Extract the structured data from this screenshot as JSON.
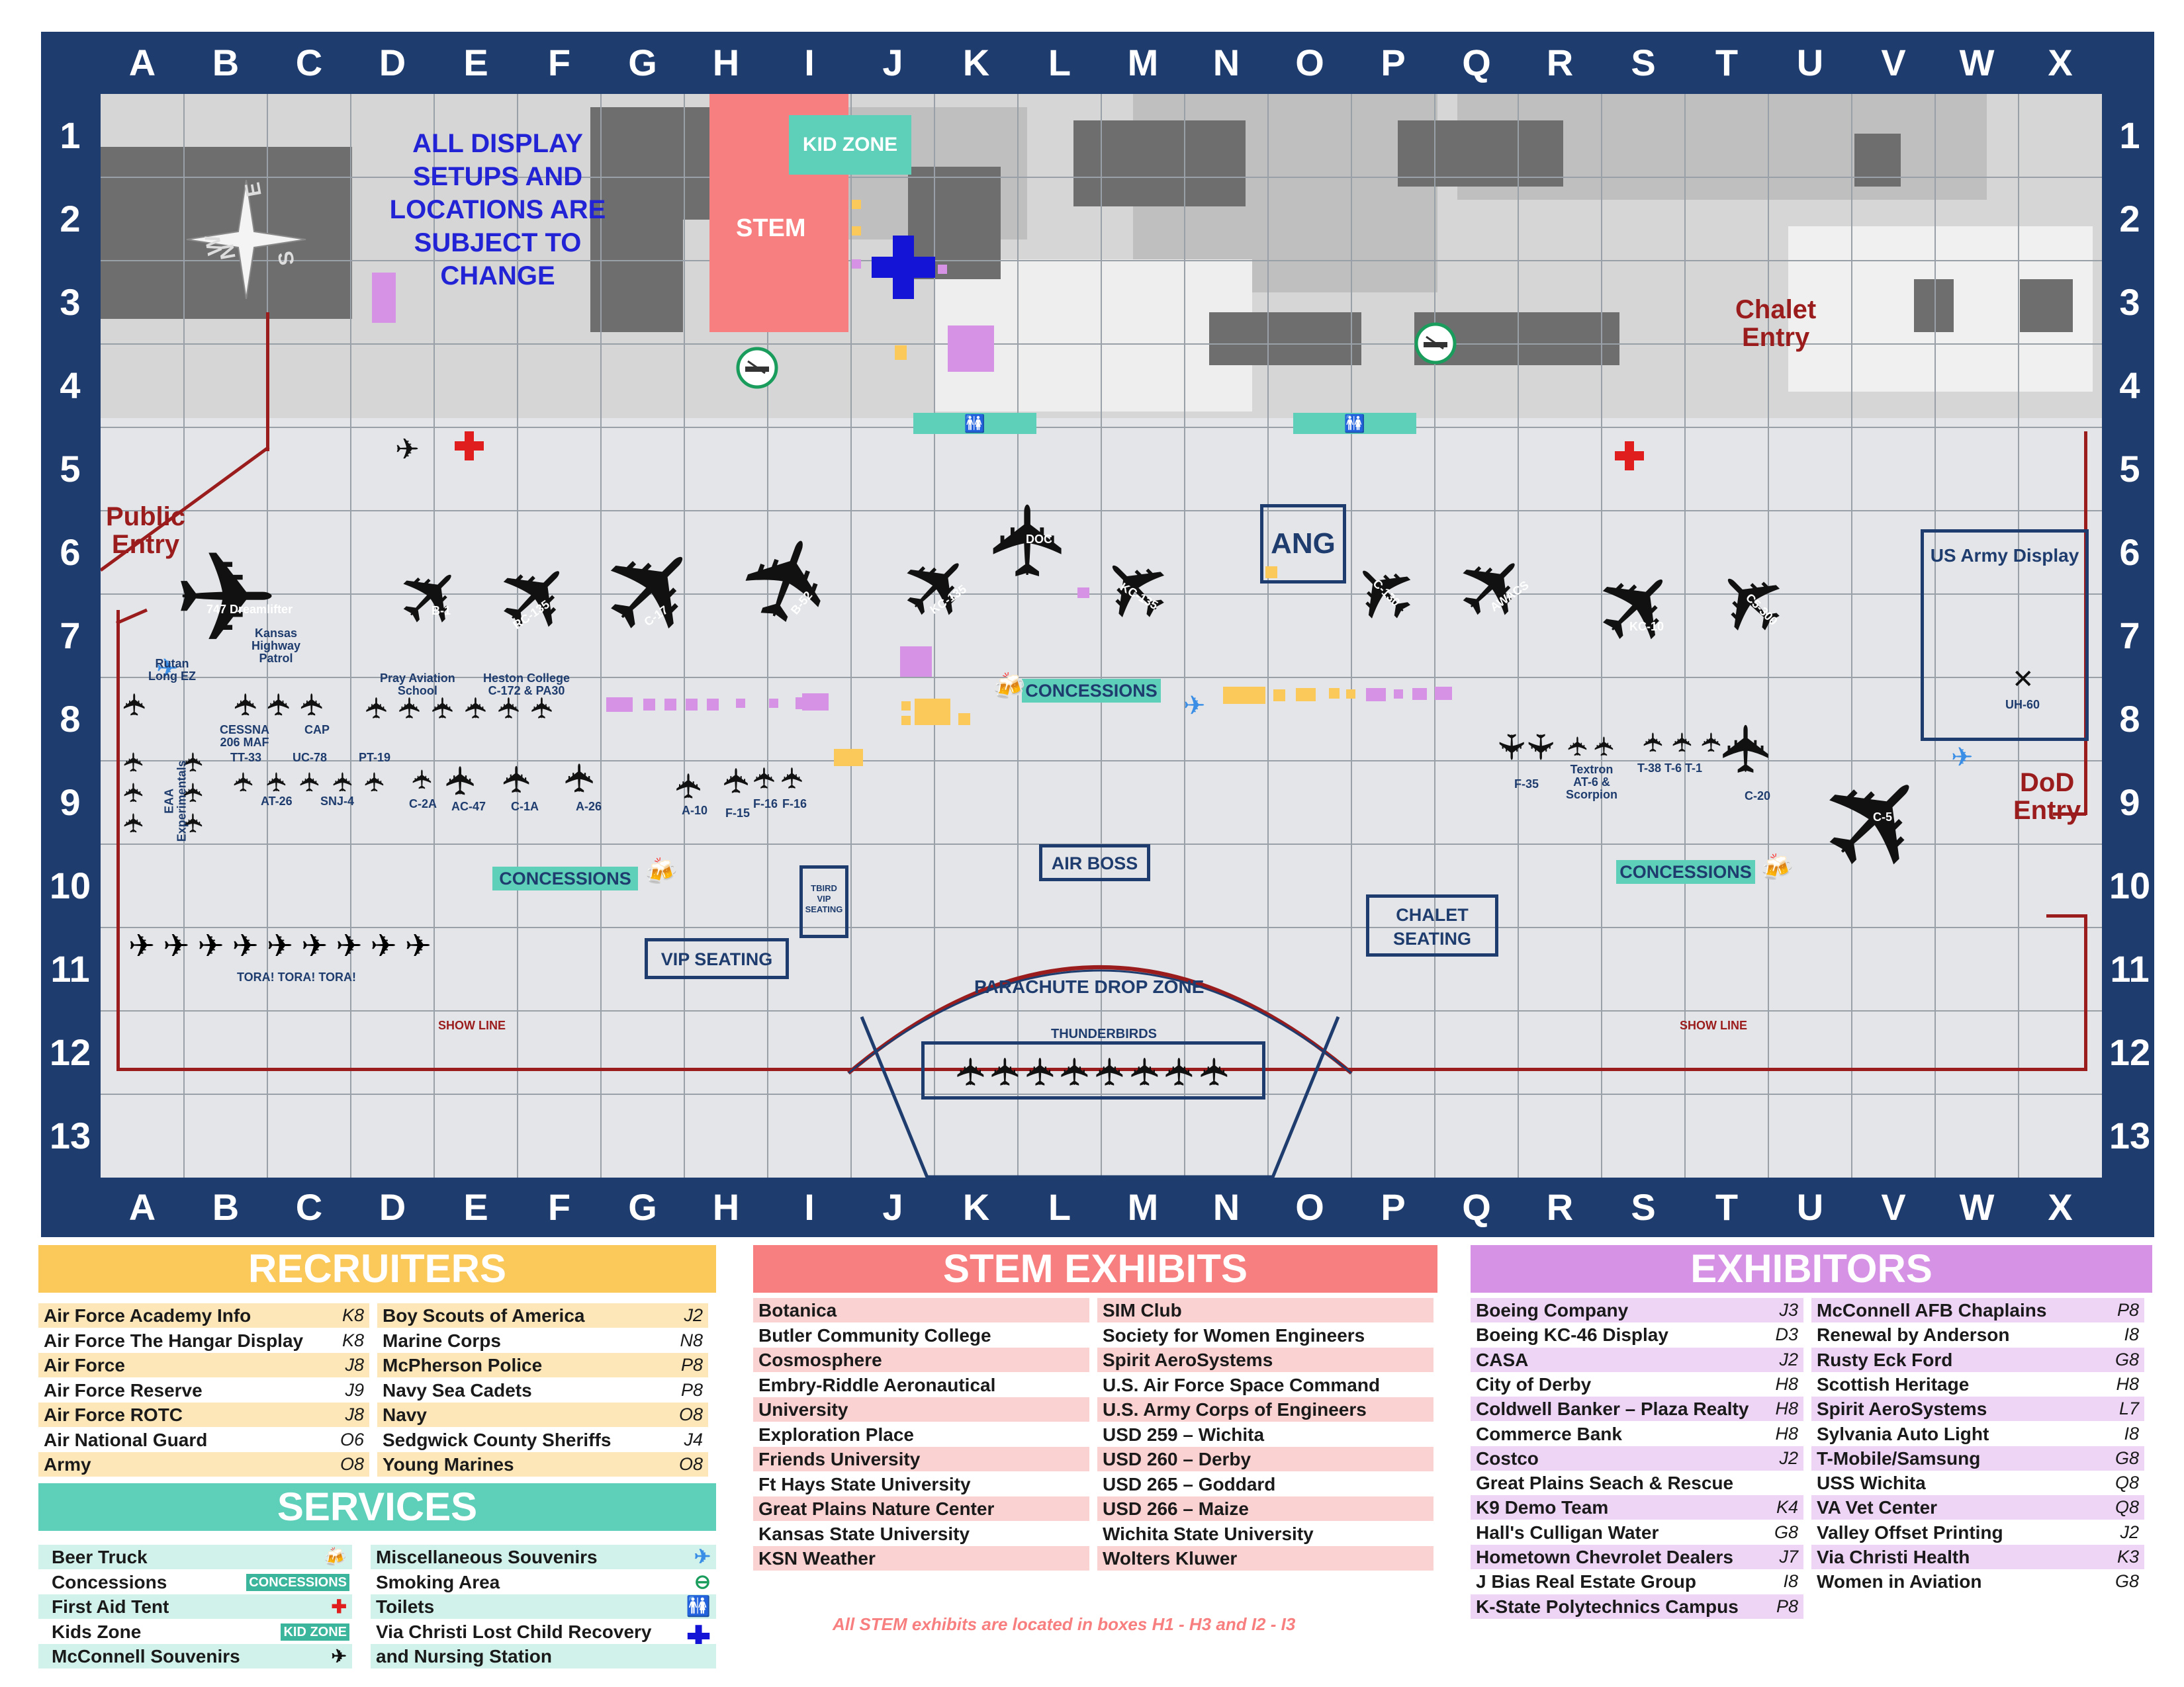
{
  "columns": [
    "A",
    "B",
    "C",
    "D",
    "E",
    "F",
    "G",
    "H",
    "I",
    "J",
    "K",
    "L",
    "M",
    "N",
    "O",
    "P",
    "Q",
    "R",
    "S",
    "T",
    "U",
    "V",
    "W",
    "X"
  ],
  "rows": [
    "1",
    "2",
    "3",
    "4",
    "5",
    "6",
    "7",
    "8",
    "9",
    "10",
    "11",
    "12",
    "13"
  ],
  "notice": [
    "ALL DISPLAY",
    "SETUPS AND",
    "LOCATIONS ARE",
    "SUBJECT TO",
    "CHANGE"
  ],
  "compass": {
    "n": "N",
    "e": "E",
    "s": "S",
    "w": "W"
  },
  "areas": {
    "stem": "STEM",
    "kid_zone": "KID ZONE",
    "chalet_entry": [
      "Chalet",
      "Entry"
    ],
    "public_entry": [
      "Public",
      "Entry"
    ],
    "dod_entry": [
      "DoD",
      "Entry"
    ],
    "ang": "ANG",
    "us_army_display": "US Army Display",
    "concessions": "CONCESSIONS",
    "vip_seating": "VIP SEATING",
    "tbird_vip": [
      "TBIRD",
      "VIP",
      "SEATING"
    ],
    "air_boss": "AIR BOSS",
    "chalet_seating": [
      "CHALET",
      "SEATING"
    ],
    "parachute_drop_zone": "PARACHUTE DROP ZONE",
    "thunderbirds": "THUNDERBIRDS",
    "show_line": "SHOW LINE",
    "tora": "TORA! TORA! TORA!"
  },
  "aircraft": {
    "a747": "747 Dreamlifter",
    "b1": "B-1",
    "rc135": "RC-135",
    "c17": "C-17",
    "b52": "B-52",
    "kc135a": "KC-135",
    "doc": "DOC",
    "kc135b": "KC-135",
    "c130": "C-130",
    "awacs": "AWACS",
    "kc10": "KC-10",
    "c5300": "C5-300",
    "uh60": "UH-60",
    "rutan": "Rutan Long EZ",
    "kansas_hp": [
      "Kansas",
      "Highway",
      "Patrol"
    ],
    "cessna": [
      "CESSNA",
      "206 MAF"
    ],
    "cap": "CAP",
    "pray": [
      "Pray Aviation",
      "School"
    ],
    "heston": [
      "Heston College",
      "C-172 & PA30"
    ],
    "eaa": [
      "EAA",
      "Experimentals"
    ],
    "tt33": "TT-33",
    "uc78": "UC-78",
    "pt19": "PT-19",
    "at26": "AT-26",
    "snj4": "SNJ-4",
    "c2a": "C-2A",
    "ac47": "AC-47",
    "c1a": "C-1A",
    "a26": "A-26",
    "a10": "A-10",
    "f15": "F-15",
    "f16a": "F-16",
    "f16b": "F-16",
    "f35": "F-35",
    "textron": [
      "Textron",
      "AT-6 &",
      "Scorpion"
    ],
    "t38": "T-38 T-6 T-1",
    "c20": "C-20",
    "c5": "C-5"
  },
  "colors": {
    "navy": "#1f3c6e",
    "recruiters": "#fbc95a",
    "services": "#5ecfb8",
    "stem": "#f87f7f",
    "exhibitors": "#d693e6",
    "red": "#9b1c1c"
  },
  "recruiters": {
    "title": "RECRUITERS",
    "left": [
      {
        "name": "Air Force Academy Info",
        "loc": "K8"
      },
      {
        "name": "Air Force The Hangar Display",
        "loc": "K8"
      },
      {
        "name": "Air Force",
        "loc": "J8"
      },
      {
        "name": "Air Force Reserve",
        "loc": "J9"
      },
      {
        "name": "Air Force ROTC",
        "loc": "J8"
      },
      {
        "name": "Air National Guard",
        "loc": "O6"
      },
      {
        "name": "Army",
        "loc": "O8"
      }
    ],
    "right": [
      {
        "name": "Boy Scouts of America",
        "loc": "J2"
      },
      {
        "name": "Marine Corps",
        "loc": "N8"
      },
      {
        "name": "McPherson Police",
        "loc": "P8"
      },
      {
        "name": "Navy Sea Cadets",
        "loc": "P8"
      },
      {
        "name": "Navy",
        "loc": "O8"
      },
      {
        "name": "Sedgwick County Sheriffs",
        "loc": "J4"
      },
      {
        "name": "Young Marines",
        "loc": "O8"
      }
    ]
  },
  "services": {
    "title": "SERVICES",
    "left": [
      {
        "name": "Beer Truck",
        "icon": "beer-icon"
      },
      {
        "name": "Concessions",
        "tag": "CONCESSIONS"
      },
      {
        "name": "First Aid Tent",
        "icon": "red-cross-icon"
      },
      {
        "name": "Kids Zone",
        "tag": "KID ZONE"
      },
      {
        "name": "McConnell Souvenirs",
        "icon": "souvenir-plane-icon"
      }
    ],
    "right": [
      {
        "name": "Miscellaneous Souvenirs",
        "icon": "blue-plane-icon"
      },
      {
        "name": "Smoking Area",
        "icon": "smoking-icon"
      },
      {
        "name": "Toilets",
        "icon": "restroom-icon"
      },
      {
        "name": "Via Christi Lost Child Recovery",
        "icon": "blue-cross-icon"
      },
      {
        "name": "and Nursing Station"
      }
    ]
  },
  "stem": {
    "title": "STEM EXHIBITS",
    "left": [
      "Botanica",
      "Butler Community College",
      "Cosmosphere",
      "Embry-Riddle Aeronautical",
      "University",
      "Exploration Place",
      "Friends University",
      "Ft Hays State University",
      "Great Plains Nature Center",
      "Kansas State University",
      "KSN Weather"
    ],
    "right": [
      "SIM Club",
      "Society for Women Engineers",
      "Spirit AeroSystems",
      "U.S. Air Force Space Command",
      "U.S. Army Corps of Engineers",
      "USD 259 – Wichita",
      "USD 260 – Derby",
      "USD 265 – Goddard",
      "USD 266 – Maize",
      "Wichita State University",
      "Wolters Kluwer"
    ],
    "note": "All STEM exhibits are located in boxes H1 - H3 and I2 - I3"
  },
  "exhibitors": {
    "title": "EXHIBITORS",
    "left": [
      {
        "name": "Boeing Company",
        "loc": "J3"
      },
      {
        "name": "Boeing KC-46 Display",
        "loc": "D3"
      },
      {
        "name": "CASA",
        "loc": "J2"
      },
      {
        "name": "City of Derby",
        "loc": "H8"
      },
      {
        "name": "Coldwell Banker – Plaza Realty",
        "loc": "H8"
      },
      {
        "name": "Commerce Bank",
        "loc": "H8"
      },
      {
        "name": "Costco",
        "loc": "J2"
      },
      {
        "name": "Great Plains Seach & Rescue",
        "loc": ""
      },
      {
        "name": "K9 Demo Team",
        "loc": "K4"
      },
      {
        "name": "Hall's Culligan Water",
        "loc": "G8"
      },
      {
        "name": "Hometown Chevrolet Dealers",
        "loc": "J7"
      },
      {
        "name": "J Bias Real Estate Group",
        "loc": "I8"
      },
      {
        "name": "K-State Polytechnics Campus",
        "loc": "P8"
      }
    ],
    "right": [
      {
        "name": "McConnell AFB Chaplains",
        "loc": "P8"
      },
      {
        "name": "Renewal by Anderson",
        "loc": "I8"
      },
      {
        "name": "Rusty Eck Ford",
        "loc": "G8"
      },
      {
        "name": "Scottish Heritage",
        "loc": "H8"
      },
      {
        "name": "Spirit AeroSystems",
        "loc": "L7"
      },
      {
        "name": "Sylvania Auto Light",
        "loc": "I8"
      },
      {
        "name": "T-Mobile/Samsung",
        "loc": "G8"
      },
      {
        "name": "USS Wichita",
        "loc": "Q8"
      },
      {
        "name": "VA Vet Center",
        "loc": "Q8"
      },
      {
        "name": "Valley Offset Printing",
        "loc": "J2"
      },
      {
        "name": "Via Christi Health",
        "loc": "K3"
      },
      {
        "name": "Women in Aviation",
        "loc": "G8"
      }
    ]
  }
}
